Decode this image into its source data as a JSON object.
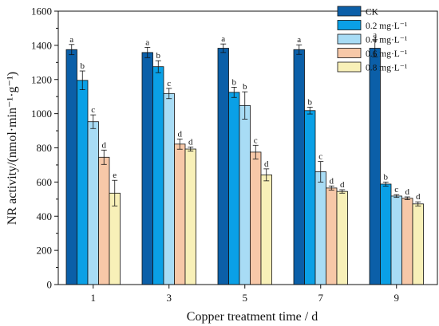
{
  "chart_data": {
    "type": "bar",
    "xlabel": "Copper treatment time / d",
    "ylabel": "NR activity/(nmol·min⁻¹·g⁻¹)",
    "ylim": [
      0,
      1600
    ],
    "yticks": [
      0,
      200,
      400,
      600,
      800,
      1000,
      1200,
      1400,
      1600
    ],
    "categories": [
      "1",
      "3",
      "5",
      "7",
      "9"
    ],
    "legend_position": "top-right",
    "series": [
      {
        "name": "CK",
        "color": "#0b5fa8",
        "values": [
          1375,
          1358,
          1383,
          1375,
          1383
        ],
        "errors": [
          30,
          30,
          25,
          28,
          50
        ],
        "letters": [
          "a",
          "a",
          "a",
          "a",
          "a"
        ]
      },
      {
        "name": "0.2 mg·L⁻¹",
        "color": "#0aa0e6",
        "values": [
          1195,
          1275,
          1125,
          1018,
          588
        ],
        "errors": [
          55,
          35,
          30,
          20,
          12
        ],
        "letters": [
          "b",
          "b",
          "b",
          "b",
          "b"
        ]
      },
      {
        "name": "0.4 mg·L⁻¹",
        "color": "#a8dcf5",
        "values": [
          953,
          1118,
          1048,
          660,
          518
        ],
        "errors": [
          40,
          30,
          80,
          60,
          8
        ],
        "letters": [
          "c",
          "c",
          "b",
          "c",
          "c"
        ]
      },
      {
        "name": "0.6 mg·L⁻¹",
        "color": "#f7c8a8",
        "values": [
          745,
          822,
          775,
          565,
          505
        ],
        "errors": [
          42,
          30,
          40,
          12,
          8
        ],
        "letters": [
          "d",
          "d",
          "c",
          "d",
          "d"
        ]
      },
      {
        "name": "0.8 mg·L⁻¹",
        "color": "#f8f0b8",
        "values": [
          535,
          793,
          642,
          545,
          472
        ],
        "errors": [
          75,
          12,
          35,
          10,
          12
        ],
        "letters": [
          "e",
          "d",
          "d",
          "d",
          "d"
        ]
      }
    ]
  }
}
